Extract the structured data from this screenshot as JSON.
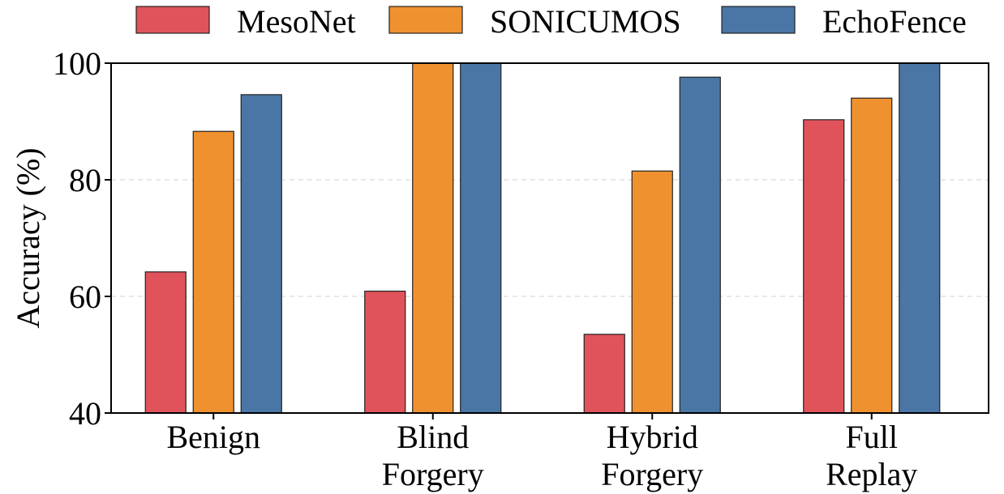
{
  "chart_data": {
    "type": "bar",
    "title": "",
    "xlabel": "",
    "ylabel": "Accuracy (%)",
    "ylim": [
      40,
      100
    ],
    "yticks": [
      40,
      60,
      80,
      100
    ],
    "grid": "horizontal dashed",
    "legend_position": "top",
    "categories": [
      [
        "Benign"
      ],
      [
        "Blind",
        "Forgery"
      ],
      [
        "Hybrid",
        "Forgery"
      ],
      [
        "Full",
        "Replay"
      ]
    ],
    "series": [
      {
        "name": "MesoNet",
        "color": "#e0535b",
        "values": [
          64.2,
          60.9,
          53.5,
          90.3
        ]
      },
      {
        "name": "SONICUMOS",
        "color": "#f0912f",
        "values": [
          88.3,
          100,
          81.5,
          94.0
        ]
      },
      {
        "name": "EchoFence",
        "color": "#4a76a6",
        "values": [
          94.6,
          100,
          97.6,
          100
        ]
      }
    ]
  }
}
